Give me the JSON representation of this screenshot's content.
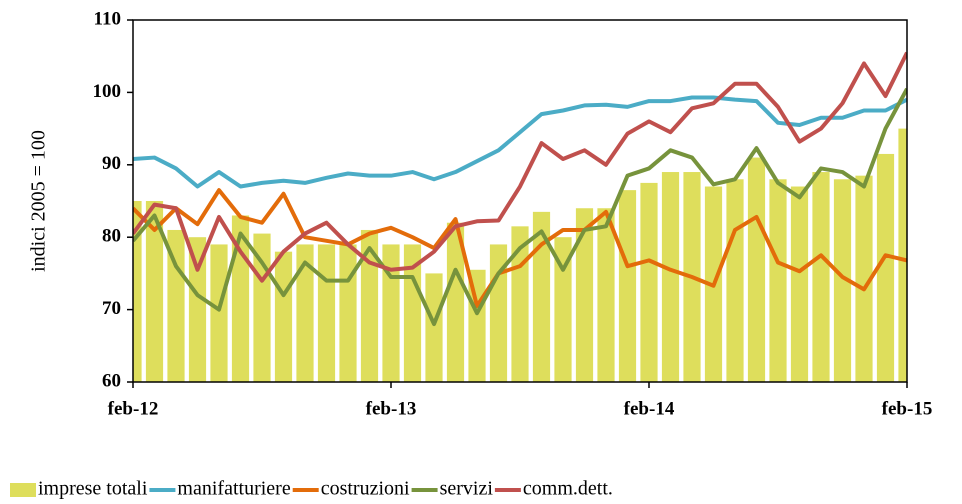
{
  "chart_data": {
    "type": "bar_line",
    "ylabel": "indici 2005 = 100",
    "categories": [
      "feb-12",
      null,
      null,
      null,
      null,
      null,
      null,
      null,
      null,
      null,
      null,
      null,
      "feb-13",
      null,
      null,
      null,
      null,
      null,
      null,
      null,
      null,
      null,
      null,
      null,
      "feb-14",
      null,
      null,
      null,
      null,
      null,
      null,
      null,
      null,
      null,
      null,
      null,
      "feb-15"
    ],
    "ylim": [
      60,
      110
    ],
    "yticks": [
      60,
      70,
      80,
      90,
      100,
      110
    ],
    "grid": false,
    "legend": "bottom",
    "series": [
      {
        "name": "imprese totali",
        "type": "bar",
        "color": "#dede5c",
        "values": [
          85,
          85,
          81,
          80,
          79,
          83,
          80.5,
          78,
          79,
          79,
          79,
          81,
          79,
          79,
          75,
          82,
          75.5,
          79,
          81.5,
          83.5,
          80,
          84,
          84,
          86.5,
          87.5,
          89,
          89,
          87,
          88,
          91,
          88,
          87,
          89,
          88,
          88.5,
          91.5,
          95
        ]
      },
      {
        "name": "manifatturiere",
        "type": "line",
        "color": "#4bacc6",
        "values": [
          90.8,
          91,
          89.5,
          87,
          89,
          87,
          87.5,
          87.8,
          87.5,
          88.2,
          88.8,
          88.5,
          88.5,
          89,
          88,
          89,
          90.5,
          92,
          94.5,
          97,
          97.5,
          98.2,
          98.3,
          98,
          98.8,
          98.8,
          99.3,
          99.3,
          99,
          98.8,
          95.8,
          95.5,
          96.5,
          96.5,
          97.5,
          97.5,
          99
        ]
      },
      {
        "name": "costruzioni",
        "type": "line",
        "color": "#e36c0a",
        "values": [
          84,
          81,
          84,
          81.8,
          86.5,
          82.8,
          82,
          86,
          80,
          79.5,
          79,
          80.5,
          81.3,
          80,
          78.5,
          82.5,
          70.5,
          75,
          76,
          79,
          81,
          81,
          83.5,
          76,
          76.8,
          75.5,
          74.5,
          73.3,
          81,
          82.8,
          76.5,
          75.3,
          77.5,
          74.5,
          72.8,
          77.5,
          76.8
        ]
      },
      {
        "name": "servizi",
        "type": "line",
        "color": "#77933c",
        "values": [
          79.5,
          83,
          76,
          72,
          70,
          80.5,
          76.5,
          72,
          76.5,
          74,
          74,
          78.5,
          74.5,
          74.5,
          68,
          75.5,
          69.5,
          75,
          78.5,
          80.8,
          75.5,
          81,
          81.5,
          88.5,
          89.5,
          92,
          91,
          87.3,
          88,
          92.3,
          87.5,
          85.5,
          89.5,
          89,
          87,
          95,
          100.5
        ]
      },
      {
        "name": "comm.dett.",
        "type": "line",
        "color": "#c0504d",
        "values": [
          80.5,
          84.5,
          84,
          75.5,
          82.8,
          78,
          74,
          78,
          80.5,
          82,
          79,
          76.5,
          75.5,
          75.8,
          78,
          81.5,
          82.2,
          82.3,
          87,
          93,
          90.8,
          92,
          90,
          94.3,
          96,
          94.5,
          97.8,
          98.5,
          101.2,
          101.2,
          98,
          93.2,
          95,
          98.5,
          104,
          99.5,
          105.5
        ]
      }
    ]
  }
}
